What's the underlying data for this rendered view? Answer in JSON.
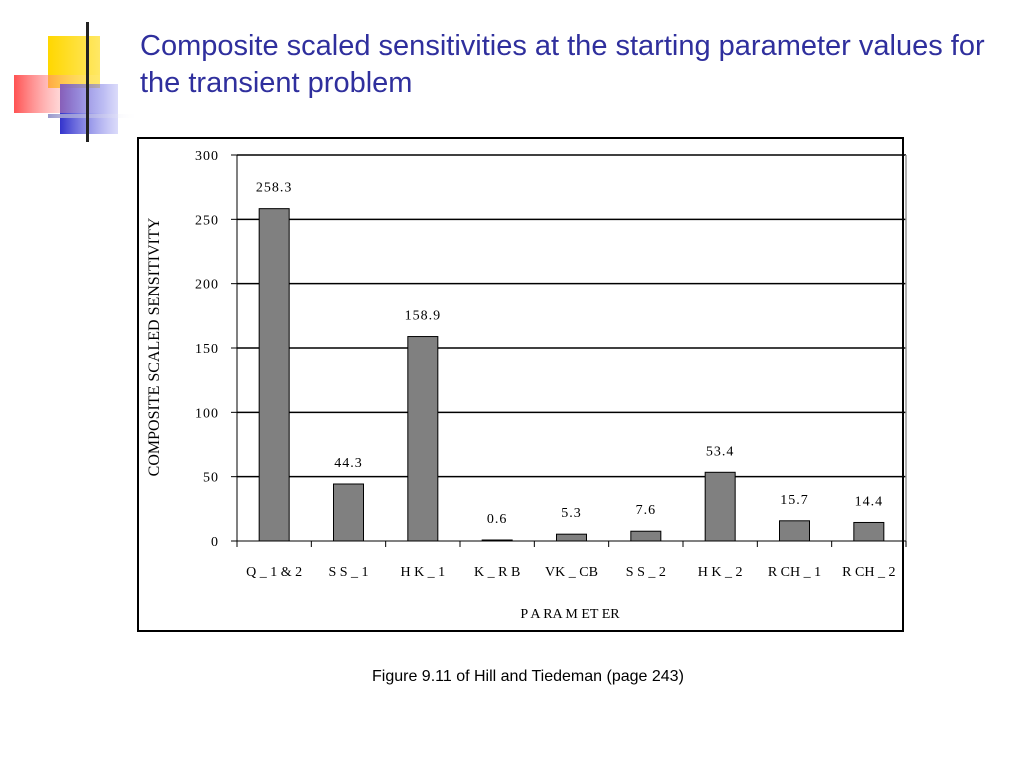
{
  "slide": {
    "title": "Composite scaled sensitivities at the starting parameter values for the transient problem",
    "caption": "Figure 9.11 of Hill and Tiedeman (page 243)"
  },
  "colors": {
    "title": "#2f2f9d",
    "bar_fill": "#808080",
    "logo_yellow": "#ffd700",
    "logo_blue": "#3333cc",
    "logo_red": "#ff4444"
  },
  "chart_data": {
    "type": "bar",
    "categories": [
      "Q_1&2",
      "SS_1",
      "HK_1",
      "K_RB",
      "VK_CB",
      "SS_2",
      "HK_2",
      "RCH_1",
      "RCH_2"
    ],
    "category_labels": [
      "Q _ 1 & 2",
      "S S _ 1",
      "H K _ 1",
      "K _ R B",
      "VK _ CB",
      "S S _ 2",
      "H K _ 2",
      "R CH _ 1",
      "R CH _ 2"
    ],
    "values": [
      258.3,
      44.3,
      158.9,
      0.6,
      5.3,
      7.6,
      53.4,
      15.7,
      14.4
    ],
    "data_labels": [
      "258.3",
      "44.3",
      "158.9",
      "0.6",
      "5.3",
      "7.6",
      "53.4",
      "15.7",
      "14.4"
    ],
    "ylim": [
      0,
      300
    ],
    "yticks": [
      0,
      50,
      100,
      150,
      200,
      250,
      300
    ],
    "xlabel": "P A RA M ET ER",
    "ylabel": "COMPOSITE SCALED SENSITIVITY",
    "grid": true,
    "legend": "none"
  }
}
